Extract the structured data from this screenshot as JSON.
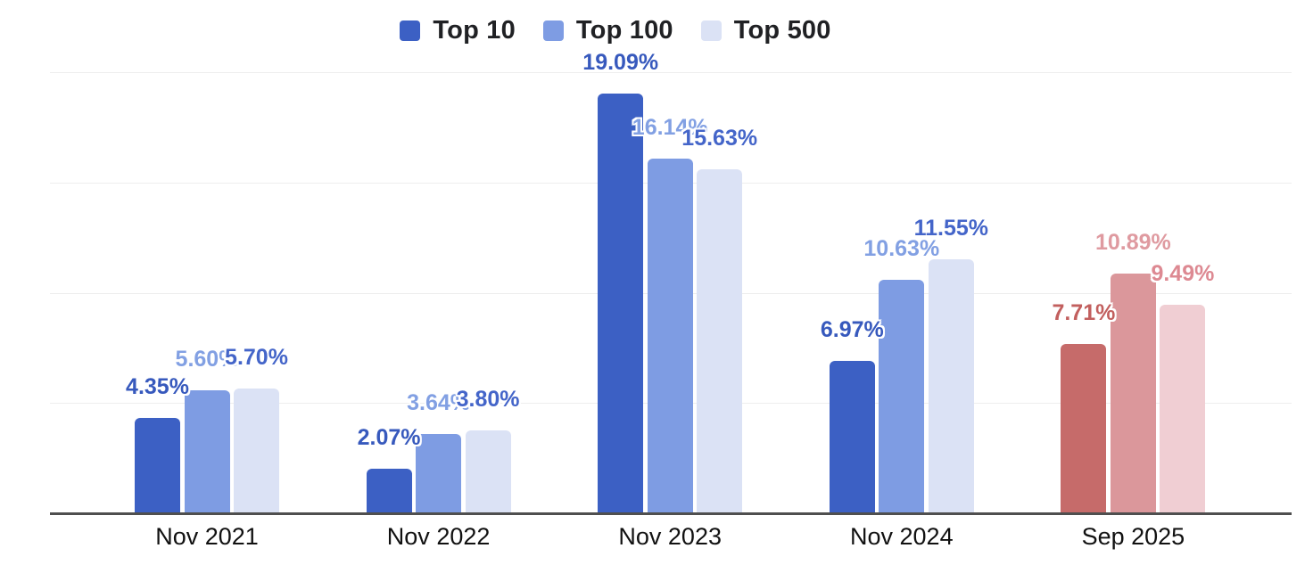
{
  "chart_data": {
    "type": "bar",
    "title": "",
    "xlabel": "",
    "ylabel": "",
    "categories": [
      "Nov 2021",
      "Nov 2022",
      "Nov 2023",
      "Nov 2024",
      "Sep 2025"
    ],
    "series": [
      {
        "name": "Top 10",
        "values": [
          4.35,
          2.07,
          19.09,
          6.97,
          7.71
        ],
        "labels": [
          "4.35%",
          "2.07%",
          "19.09%",
          "6.97%",
          "7.71%"
        ]
      },
      {
        "name": "Top 100",
        "values": [
          5.6,
          3.64,
          16.14,
          10.63,
          10.89
        ],
        "labels": [
          "5.60%",
          "3.64%",
          "16.14%",
          "10.63%",
          "10.89%"
        ]
      },
      {
        "name": "Top 500",
        "values": [
          5.7,
          3.8,
          15.63,
          11.55,
          9.49
        ],
        "labels": [
          "5.70%",
          "3.80%",
          "15.63%",
          "11.55%",
          "9.49%"
        ]
      }
    ],
    "group_schemes": [
      "blue",
      "blue",
      "blue",
      "blue",
      "red"
    ],
    "colors": {
      "bar_blue": [
        "#3c60c4",
        "#7e9ce3",
        "#dbe2f5"
      ],
      "bar_red": [
        "#c66b6a",
        "#db979b",
        "#f0ced3"
      ],
      "label_blue": [
        "#3759bd",
        "#82a0e3",
        "#4465c9"
      ],
      "label_red": [
        "#c25f5e",
        "#df9aa0",
        "#dd8992"
      ],
      "gridline": "#ededed",
      "axis_line": "#4f4f4f",
      "category_text": "#111111",
      "legend_text": "#202124",
      "background": "#ffffff"
    },
    "ylim": [
      0,
      20
    ],
    "gridline_values": [
      5,
      10,
      15,
      20
    ],
    "grid": true,
    "legend_position": "top-center"
  }
}
